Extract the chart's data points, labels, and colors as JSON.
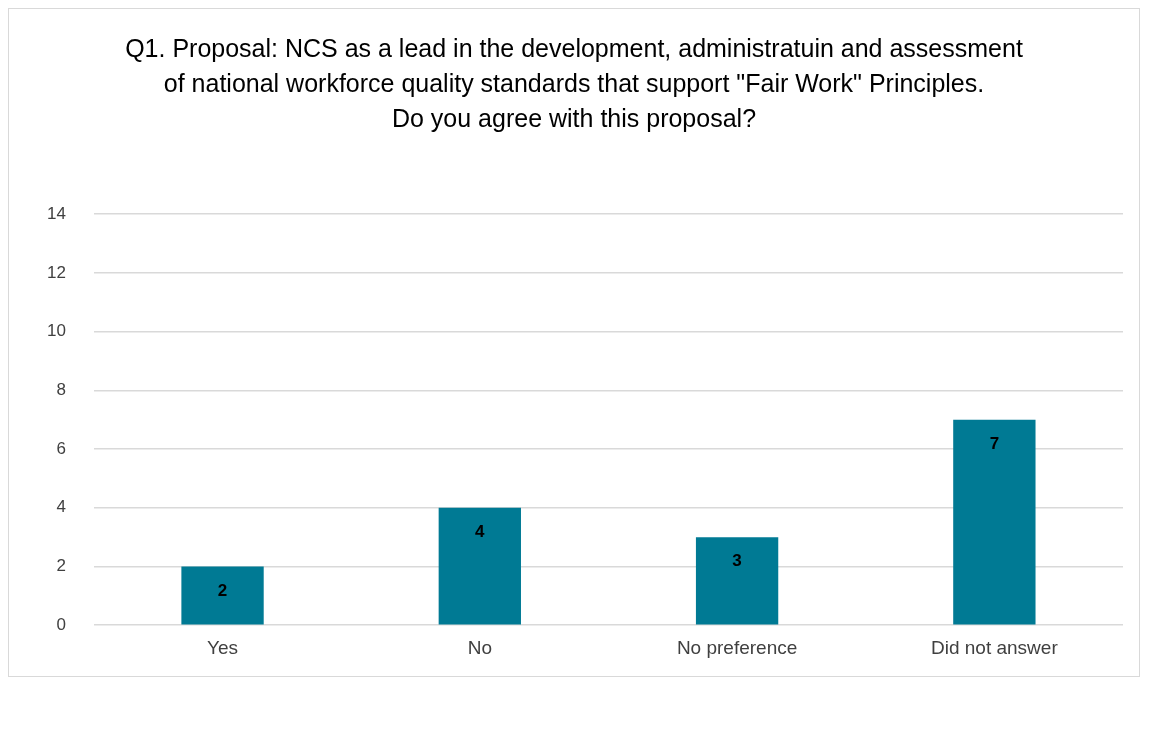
{
  "chart_data": {
    "type": "bar",
    "title": "Q1. Proposal: NCS as a lead in the development, administratuin and assessment of national workforce quality standards that support \"Fair Work\" Principles.\nDo you agree with this proposal?",
    "categories": [
      "Yes",
      "No",
      "No preference",
      "Did not answer"
    ],
    "values": [
      2,
      4,
      3,
      7
    ],
    "color": "#007a94",
    "ylim": [
      0,
      14
    ],
    "yticks": [
      0,
      2,
      4,
      6,
      8,
      10,
      12,
      14
    ],
    "grid": "y",
    "data_labels": true,
    "legend": false
  }
}
